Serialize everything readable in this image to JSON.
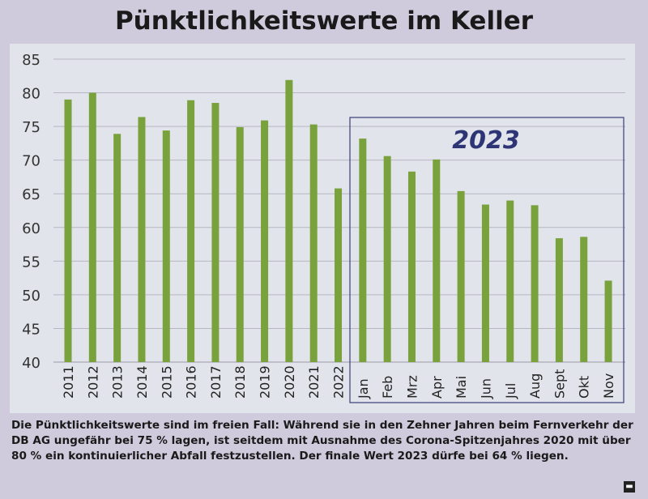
{
  "chart_data": {
    "type": "bar",
    "title": "Pünktlichkeitswerte im Keller",
    "categories": [
      "2011",
      "2012",
      "2013",
      "2014",
      "2015",
      "2016",
      "2017",
      "2018",
      "2019",
      "2020",
      "2021",
      "2022",
      "Jan",
      "Feb",
      "Mrz",
      "Apr",
      "Mai",
      "Jun",
      "Jul",
      "Aug",
      "Sept",
      "Okt",
      "Nov"
    ],
    "values": [
      79.0,
      80.0,
      73.9,
      76.4,
      74.4,
      78.9,
      78.5,
      74.9,
      75.9,
      81.9,
      75.3,
      65.8,
      73.2,
      70.6,
      68.3,
      70.1,
      65.4,
      63.4,
      64.0,
      63.3,
      58.4,
      58.6,
      52.1
    ],
    "yticks": [
      40,
      45,
      50,
      55,
      60,
      65,
      70,
      75,
      80,
      85
    ],
    "ylim": [
      40,
      85
    ],
    "xlabel": "",
    "ylabel": "",
    "grid": true,
    "highlight_box": {
      "label": "2023",
      "from": "Jan",
      "to": "Nov"
    },
    "bar_color": "#7aa23c"
  },
  "caption": "Die Pünktlichkeitswerte sind im freien Fall: Während sie in den Zehner Jahren beim Fernverkehr der DB AG ungefähr bei 75 % lagen, ist seitdem mit Ausnahme des Corona-Spitzenjahres 2020 mit über 80 % ein kontinuierlicher Abfall festzustellen. Der finale Wert 2023 dürfe bei 64 % liegen."
}
